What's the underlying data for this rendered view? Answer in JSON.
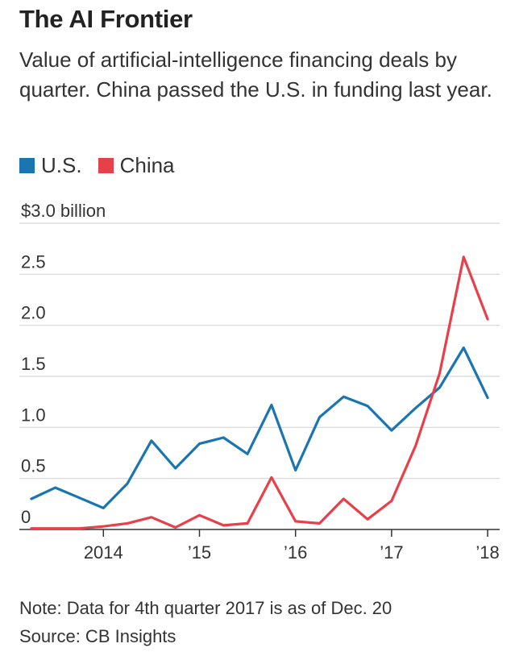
{
  "chart_data": {
    "type": "line",
    "title": "The AI Frontier",
    "subtitle": "Value of artificial-intelligence financing deals by quarter. China passed the U.S. in funding last year.",
    "ylabel": "",
    "xlabel": "",
    "ylim": [
      0,
      3.0
    ],
    "y_ticks": [
      0,
      0.5,
      1.0,
      1.5,
      2.0,
      2.5,
      3.0
    ],
    "y_tick_labels": [
      "0",
      "0.5",
      "1.0",
      "1.5",
      "2.0",
      "2.5",
      "$3.0 billion"
    ],
    "x_ticks": [
      2014,
      2015,
      2016,
      2017,
      2018
    ],
    "x_tick_labels": [
      "2014",
      "’15",
      "’16",
      "’17",
      "’18"
    ],
    "x_domain": [
      2013.125,
      2018.125
    ],
    "quarters": [
      "Q1 2013",
      "Q2 2013",
      "Q3 2013",
      "Q4 2013",
      "Q1 2014",
      "Q2 2014",
      "Q3 2014",
      "Q4 2014",
      "Q1 2015",
      "Q2 2015",
      "Q3 2015",
      "Q4 2015",
      "Q1 2016",
      "Q2 2016",
      "Q3 2016",
      "Q4 2016",
      "Q1 2017",
      "Q2 2017",
      "Q3 2017",
      "Q4 2017"
    ],
    "x": [
      2013.25,
      2013.5,
      2013.75,
      2014.0,
      2014.25,
      2014.5,
      2014.75,
      2015.0,
      2015.25,
      2015.5,
      2015.75,
      2016.0,
      2016.25,
      2016.5,
      2016.75,
      2017.0,
      2017.25,
      2017.5,
      2017.75,
      2018.0
    ],
    "series": [
      {
        "name": "U.S.",
        "color": "#1a75b0",
        "values": [
          0.3,
          0.41,
          0.31,
          0.21,
          0.45,
          0.87,
          0.6,
          0.84,
          0.9,
          0.74,
          1.22,
          0.58,
          1.1,
          1.3,
          1.21,
          0.97,
          1.19,
          1.39,
          1.78,
          1.29
        ]
      },
      {
        "name": "China",
        "color": "#e8404a",
        "values": [
          0.01,
          0.01,
          0.01,
          0.03,
          0.06,
          0.12,
          0.02,
          0.14,
          0.04,
          0.06,
          0.51,
          0.08,
          0.06,
          0.3,
          0.1,
          0.28,
          0.82,
          1.53,
          2.67,
          2.06
        ]
      }
    ],
    "grid": true,
    "legend_position": "top-left"
  },
  "note": "Note: Data for 4th quarter 2017 is as of Dec. 20",
  "source": "Source: CB Insights",
  "colors": {
    "grid": "#d6d6d6",
    "axis": "#333333"
  }
}
